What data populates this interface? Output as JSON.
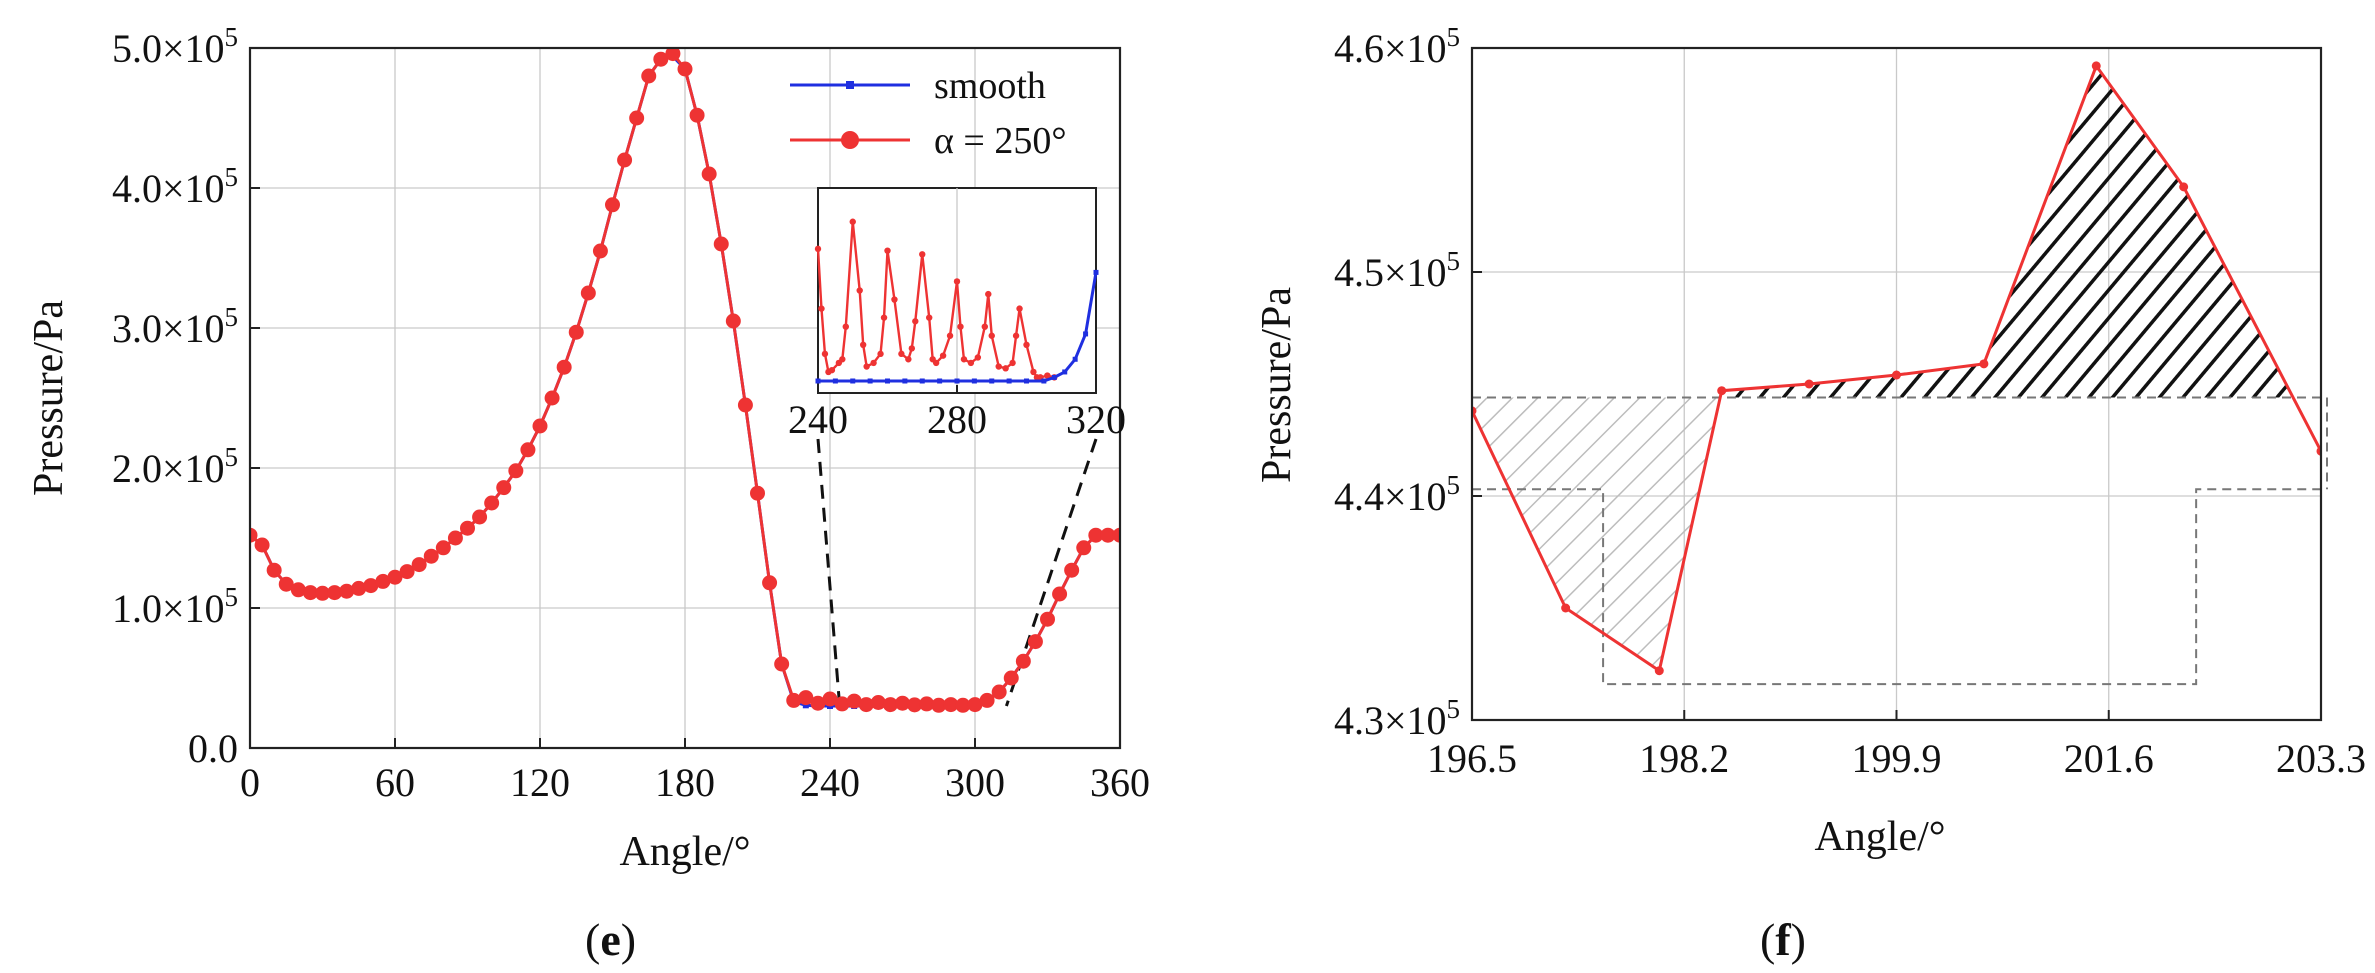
{
  "colors": {
    "smooth": "#1f2fe0",
    "alpha": "#ee3333",
    "connector": "#111111",
    "shade_light": "#bdbdbd",
    "shade_dark": "#111111"
  },
  "chart_data": [
    {
      "type": "line",
      "panel_label_prefix": "(",
      "panel_label_letter": "e",
      "panel_label_suffix": ")",
      "xlabel": "Angle/°",
      "ylabel": "Pressure/Pa",
      "xlim": [
        0,
        360
      ],
      "ylim": [
        0,
        500000
      ],
      "x_ticks": [
        "0",
        "60",
        "120",
        "180",
        "240",
        "300",
        "360"
      ],
      "y_ticks": [
        {
          "mantissa": "0.0",
          "exp": ""
        },
        {
          "mantissa": "1.0×10",
          "exp": "5"
        },
        {
          "mantissa": "2.0×10",
          "exp": "5"
        },
        {
          "mantissa": "3.0×10",
          "exp": "5"
        },
        {
          "mantissa": "4.0×10",
          "exp": "5"
        },
        {
          "mantissa": "5.0×10",
          "exp": "5"
        }
      ],
      "grid": true,
      "legend_position": "top-right",
      "series": [
        {
          "name": "smooth",
          "x": [
            0,
            5,
            10,
            15,
            20,
            25,
            30,
            35,
            40,
            45,
            50,
            55,
            60,
            65,
            70,
            75,
            80,
            85,
            90,
            95,
            100,
            105,
            110,
            115,
            120,
            125,
            130,
            135,
            140,
            145,
            150,
            155,
            160,
            165,
            170,
            175,
            180,
            185,
            190,
            195,
            200,
            205,
            210,
            215,
            220,
            225,
            230,
            235,
            240,
            245,
            250,
            255,
            260,
            265,
            270,
            275,
            280,
            285,
            290,
            295,
            300,
            305,
            310,
            315,
            320,
            325,
            330,
            335,
            340,
            345,
            350,
            355,
            360
          ],
          "values": [
            152000,
            145000,
            127000,
            117000,
            113000,
            111000,
            110500,
            111000,
            112000,
            114000,
            116000,
            119000,
            122000,
            126000,
            131000,
            137000,
            143000,
            150000,
            157000,
            165000,
            175000,
            186000,
            198000,
            213000,
            230000,
            250000,
            272000,
            297000,
            325000,
            355000,
            388000,
            420000,
            450000,
            480000,
            492000,
            494000,
            485000,
            452000,
            410000,
            360000,
            305000,
            245000,
            182000,
            118000,
            60000,
            33000,
            30500,
            30000,
            30000,
            30000,
            30000,
            30000,
            30000,
            30000,
            30000,
            30000,
            30000,
            30000,
            30000,
            30000,
            30500,
            34000,
            40000,
            50000,
            62000,
            76000,
            92000,
            110000,
            127000,
            143000,
            152000,
            152000,
            152000
          ]
        },
        {
          "name": "α = 250°",
          "x": [
            0,
            5,
            10,
            15,
            20,
            25,
            30,
            35,
            40,
            45,
            50,
            55,
            60,
            65,
            70,
            75,
            80,
            85,
            90,
            95,
            100,
            105,
            110,
            115,
            120,
            125,
            130,
            135,
            140,
            145,
            150,
            155,
            160,
            165,
            170,
            175,
            180,
            185,
            190,
            195,
            200,
            205,
            210,
            215,
            220,
            225,
            230,
            235,
            240,
            245,
            250,
            255,
            260,
            265,
            270,
            275,
            280,
            285,
            290,
            295,
            300,
            305,
            310,
            315,
            320,
            325,
            330,
            335,
            340,
            345,
            350,
            355,
            360
          ],
          "values": [
            152000,
            145000,
            127000,
            117000,
            113000,
            111000,
            110500,
            111000,
            112000,
            114000,
            116000,
            119000,
            122000,
            126000,
            131000,
            137000,
            143000,
            150000,
            157000,
            165000,
            175000,
            186000,
            198000,
            213000,
            230000,
            250000,
            272000,
            297000,
            325000,
            355000,
            388000,
            420000,
            450000,
            480000,
            492000,
            496000,
            485000,
            452000,
            410000,
            360000,
            305000,
            245000,
            182000,
            118000,
            60000,
            34000,
            36000,
            32000,
            35000,
            31500,
            33500,
            31000,
            32500,
            31000,
            32000,
            30800,
            31500,
            30500,
            31000,
            30500,
            31000,
            34000,
            40000,
            50000,
            62000,
            76000,
            92000,
            110000,
            127000,
            143000,
            152000,
            152000,
            152000
          ]
        }
      ],
      "inset": {
        "xlim": [
          240,
          320
        ],
        "x_ticks": [
          "240",
          "280",
          "320"
        ],
        "smooth": {
          "x": [
            240,
            245,
            250,
            255,
            260,
            265,
            270,
            275,
            280,
            285,
            290,
            295,
            300,
            305,
            308,
            311,
            314,
            317,
            320
          ],
          "values": [
            0.0,
            0,
            0,
            0,
            0,
            0,
            0,
            0,
            0,
            0,
            0,
            0,
            0,
            0,
            0.02,
            0.05,
            0.12,
            0.26,
            0.6
          ]
        },
        "alpha": {
          "x": [
            240,
            241,
            242,
            243,
            244,
            246,
            247,
            248,
            250,
            252,
            253,
            254,
            256,
            258,
            259,
            260,
            262,
            264,
            266,
            267,
            268,
            270,
            272,
            273,
            274,
            276,
            278,
            280,
            281,
            282,
            284,
            286,
            288,
            289,
            290,
            292,
            294,
            296,
            297,
            298,
            300,
            302,
            303,
            304,
            306,
            308
          ],
          "values": [
            0.73,
            0.4,
            0.15,
            0.05,
            0.06,
            0.1,
            0.12,
            0.3,
            0.88,
            0.5,
            0.2,
            0.08,
            0.1,
            0.15,
            0.35,
            0.72,
            0.45,
            0.15,
            0.12,
            0.18,
            0.33,
            0.7,
            0.35,
            0.12,
            0.1,
            0.14,
            0.25,
            0.55,
            0.3,
            0.12,
            0.1,
            0.13,
            0.3,
            0.48,
            0.25,
            0.08,
            0.07,
            0.1,
            0.25,
            0.4,
            0.2,
            0.05,
            0.02,
            0.02,
            0.03,
            0.02
          ]
        }
      }
    },
    {
      "type": "area",
      "panel_label_prefix": "(",
      "panel_label_letter": "f",
      "panel_label_suffix": ")",
      "xlabel": "Angle/°",
      "ylabel": "Pressure/Pa",
      "xlim": [
        196.5,
        203.3
      ],
      "ylim": [
        430000,
        460000
      ],
      "x_ticks": [
        "196.5",
        "198.2",
        "199.9",
        "201.6",
        "203.3"
      ],
      "y_ticks": [
        {
          "mantissa": "4.3×10",
          "exp": "5"
        },
        {
          "mantissa": "4.4×10",
          "exp": "5"
        },
        {
          "mantissa": "4.5×10",
          "exp": "5"
        },
        {
          "mantissa": "4.6×10",
          "exp": "5"
        }
      ],
      "grid": true,
      "baseline": 444400,
      "series": [
        {
          "name": "α = 250°",
          "x": [
            196.5,
            197.25,
            198.0,
            198.5,
            199.2,
            199.9,
            200.6,
            201.5,
            202.2,
            203.3
          ],
          "values": [
            443800,
            435000,
            432200,
            444700,
            445000,
            445400,
            445900,
            459200,
            453800,
            442000
          ]
        }
      ],
      "step_reference": {
        "x": [
          196.5,
          197.55,
          197.55,
          202.3,
          202.3,
          203.3
        ],
        "values": [
          440300,
          440300,
          431600,
          431600,
          440300,
          440300
        ]
      }
    }
  ]
}
